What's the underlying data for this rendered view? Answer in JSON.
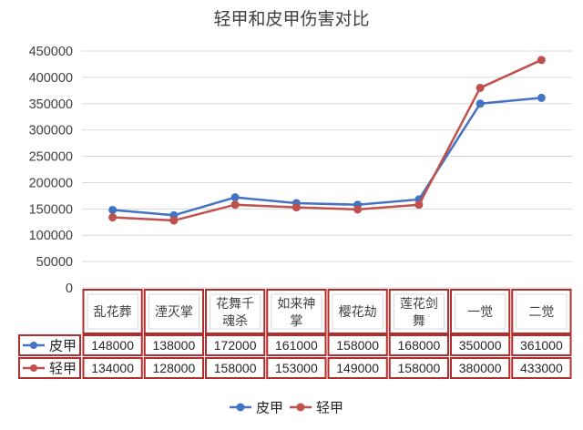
{
  "chart_data": {
    "type": "line",
    "title": "轻甲和皮甲伤害对比",
    "categories": [
      [
        "乱花葬"
      ],
      [
        "湮灭掌"
      ],
      [
        "花舞千",
        "魂杀"
      ],
      [
        "如来神",
        "掌"
      ],
      [
        "樱花劫"
      ],
      [
        "莲花剑",
        "舞"
      ],
      [
        "一觉"
      ],
      [
        "二觉"
      ]
    ],
    "ylim": [
      0,
      450000
    ],
    "yticks": [
      0,
      50000,
      100000,
      150000,
      200000,
      250000,
      300000,
      350000,
      400000,
      450000
    ],
    "grid": true,
    "legend": "bottom",
    "data_table": true,
    "series": [
      {
        "name": "皮甲",
        "color": "#4472C4",
        "values": [
          148000,
          138000,
          172000,
          161000,
          158000,
          168000,
          350000,
          361000
        ]
      },
      {
        "name": "轻甲",
        "color": "#C0504D",
        "values": [
          134000,
          128000,
          158000,
          153000,
          149000,
          158000,
          380000,
          433000
        ]
      }
    ]
  }
}
